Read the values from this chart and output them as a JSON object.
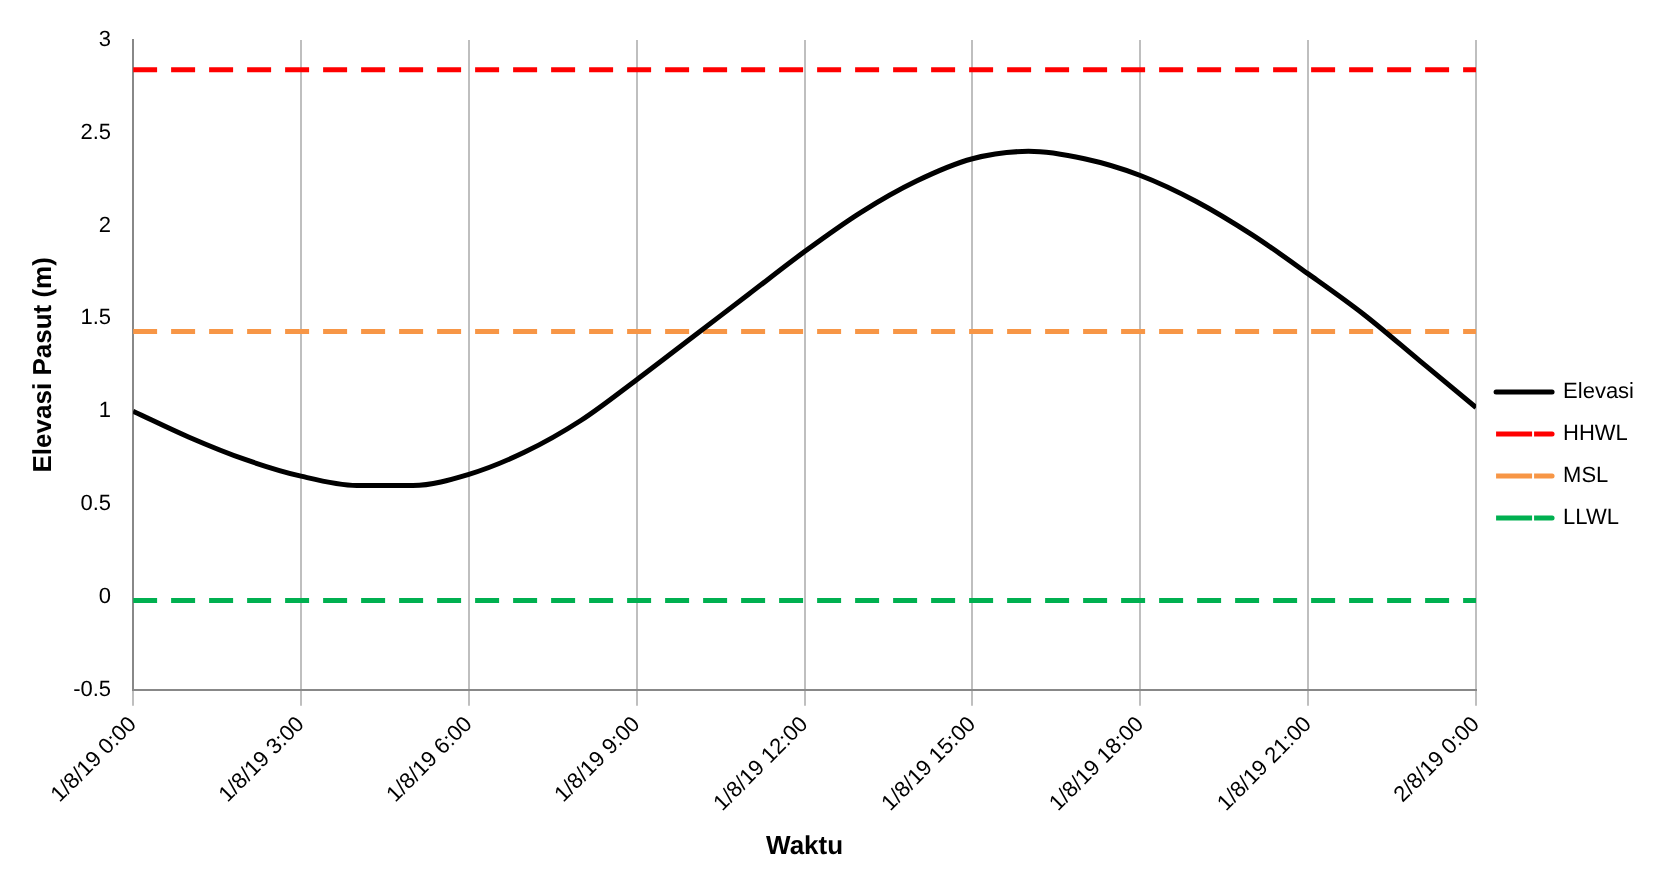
{
  "chart_data": {
    "type": "line",
    "xlabel": "Waktu",
    "ylabel": "Elevasi Pasut (m)",
    "xlim": [
      "--08-01T00:00",
      "--08-02T00:00"
    ],
    "xticks": [
      {
        "value": "--08-01T00:00",
        "label": "1/8/19 0:00"
      },
      {
        "value": "--08-01T03:00",
        "label": "1/8/19 3:00"
      },
      {
        "value": "--08-01T06:00",
        "label": "1/8/19 6:00"
      },
      {
        "value": "--08-01T09:00",
        "label": "1/8/19 9:00"
      },
      {
        "value": "--08-01T12:00",
        "label": "1/8/19 12:00"
      },
      {
        "value": "--08-01T15:00",
        "label": "1/8/19 15:00"
      },
      {
        "value": "--08-01T18:00",
        "label": "1/8/19 18:00"
      },
      {
        "value": "--08-01T21:00",
        "label": "1/8/19 21:00"
      },
      {
        "value": "--08-02T00:00",
        "label": "2/8/19 0:00"
      }
    ],
    "ylim": [
      -0.5,
      3
    ],
    "yticks": [
      -0.5,
      0,
      0.5,
      1,
      1.5,
      2,
      2.5,
      3
    ],
    "grid": "x",
    "legend": "right",
    "marker": "none",
    "series": [
      {
        "name": "Elevasi",
        "color": "#000000",
        "line_style": "solid",
        "x": [
          "--08-01T00:00",
          "--08-01T01:00",
          "--08-01T02:00",
          "--08-01T03:00",
          "--08-01T04:00",
          "--08-01T05:00",
          "--08-01T06:00",
          "--08-01T07:00",
          "--08-01T08:00",
          "--08-01T09:00",
          "--08-01T10:00",
          "--08-01T11:00",
          "--08-01T12:00",
          "--08-01T13:00",
          "--08-01T14:00",
          "--08-01T15:00",
          "--08-01T16:00",
          "--08-01T17:00",
          "--08-01T18:00",
          "--08-01T19:00",
          "--08-01T20:00",
          "--08-01T21:00",
          "--08-01T22:00",
          "--08-01T23:00",
          "--08-02T00:00"
        ],
        "values": [
          1.0,
          0.86,
          0.74,
          0.65,
          0.6,
          0.6,
          0.66,
          0.78,
          0.95,
          1.17,
          1.4,
          1.63,
          1.86,
          2.07,
          2.24,
          2.36,
          2.4,
          2.36,
          2.27,
          2.13,
          1.95,
          1.74,
          1.52,
          1.27,
          1.02
        ]
      },
      {
        "name": "HHWL",
        "color": "#ff0000",
        "line_style": "dashed",
        "x": [
          "--08-01T00:00",
          "--08-02T00:00"
        ],
        "values": [
          2.84,
          2.84
        ]
      },
      {
        "name": "MSL",
        "color": "#f79646",
        "line_style": "dashed",
        "x": [
          "--08-01T00:00",
          "--08-02T00:00"
        ],
        "values": [
          1.43,
          1.43
        ]
      },
      {
        "name": "LLWL",
        "color": "#00b050",
        "line_style": "dashed",
        "x": [
          "--08-01T00:00",
          "--08-02T00:00"
        ],
        "values": [
          -0.02,
          -0.02
        ]
      }
    ]
  }
}
